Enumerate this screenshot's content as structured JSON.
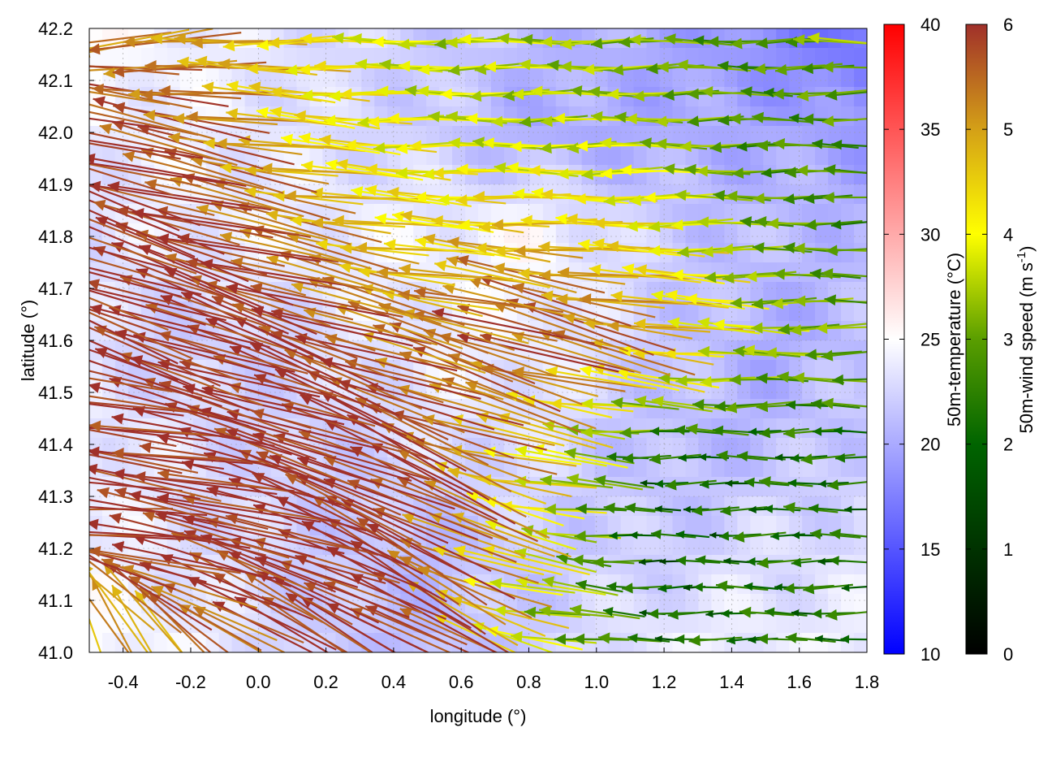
{
  "chart_data": {
    "type": "heatmap",
    "subtype": "vector field over temperature map with contours",
    "xlabel": "longitude (°)",
    "ylabel": "latitude (°)",
    "xlim": [
      -0.5,
      1.8
    ],
    "ylim": [
      41.0,
      42.2
    ],
    "xticks": [
      "-0.4",
      "-0.2",
      "0.0",
      "0.2",
      "0.4",
      "0.6",
      "0.8",
      "1.0",
      "1.2",
      "1.4",
      "1.6",
      "1.8"
    ],
    "yticks": [
      "41.0",
      "41.1",
      "41.2",
      "41.3",
      "41.4",
      "41.5",
      "41.6",
      "41.7",
      "41.8",
      "41.9",
      "42.0",
      "42.1",
      "42.2"
    ],
    "grid": true,
    "colorbars": [
      {
        "label": "50m-temperature (°C)",
        "range": [
          10,
          40
        ],
        "ticks": [
          "10",
          "15",
          "20",
          "25",
          "30",
          "35",
          "40"
        ],
        "colors": [
          "#0000ff",
          "#ffffff",
          "#ff0000"
        ]
      },
      {
        "label": "50m-wind speed (m s",
        "label_sup": "-1",
        "label_end": ")",
        "range": [
          0,
          6
        ],
        "ticks": [
          "0",
          "1",
          "2",
          "3",
          "4",
          "5",
          "6"
        ],
        "colors": [
          "#000000",
          "#006400",
          "#5a9e00",
          "#ffff00",
          "#d4a017",
          "#a0302a"
        ]
      }
    ],
    "grid_lats": [
      42.2,
      42.0,
      41.8,
      41.6,
      41.4,
      41.2,
      41.0
    ],
    "grid_lons": [
      -0.5,
      -0.17,
      0.17,
      0.5,
      0.83,
      1.17,
      1.5,
      1.8
    ],
    "wind_speed": [
      [
        5,
        5,
        4,
        3,
        3,
        2.5,
        2,
        3
      ],
      [
        6,
        5.5,
        4,
        3.5,
        3,
        3,
        2,
        2
      ],
      [
        6,
        6,
        5,
        4,
        4.5,
        4,
        2.5,
        2
      ],
      [
        6,
        6,
        6,
        5,
        6,
        5,
        3,
        2.5
      ],
      [
        6,
        6,
        6,
        6,
        4,
        1.5,
        1.5,
        1.5
      ],
      [
        6,
        6,
        6,
        6,
        3.5,
        1,
        1.5,
        1.5
      ],
      [
        4,
        5,
        6,
        6,
        3,
        1.5,
        1.5,
        1.5
      ]
    ],
    "wind_direction_deg": [
      [
        190,
        185,
        180,
        180,
        180,
        180,
        180,
        180
      ],
      [
        165,
        170,
        175,
        180,
        180,
        180,
        180,
        180
      ],
      [
        160,
        165,
        170,
        175,
        178,
        180,
        180,
        180
      ],
      [
        160,
        160,
        160,
        165,
        160,
        170,
        180,
        180
      ],
      [
        175,
        170,
        160,
        155,
        170,
        180,
        180,
        180
      ],
      [
        175,
        170,
        160,
        150,
        170,
        180,
        180,
        180
      ],
      [
        90,
        140,
        150,
        150,
        170,
        180,
        180,
        180
      ]
    ],
    "temperature": [
      [
        25,
        24,
        23,
        22,
        21,
        20,
        18,
        16
      ],
      [
        24,
        24,
        23,
        22,
        20,
        20,
        20,
        19
      ],
      [
        23,
        24,
        24,
        24,
        25,
        22,
        21,
        21
      ],
      [
        23,
        22,
        23,
        24,
        24,
        22,
        20,
        21
      ],
      [
        24,
        23,
        22,
        23,
        23,
        21,
        21,
        22
      ],
      [
        24,
        23,
        22,
        21,
        22,
        22,
        23,
        23
      ],
      [
        25,
        24,
        22,
        21,
        22,
        24,
        24,
        24
      ]
    ]
  }
}
